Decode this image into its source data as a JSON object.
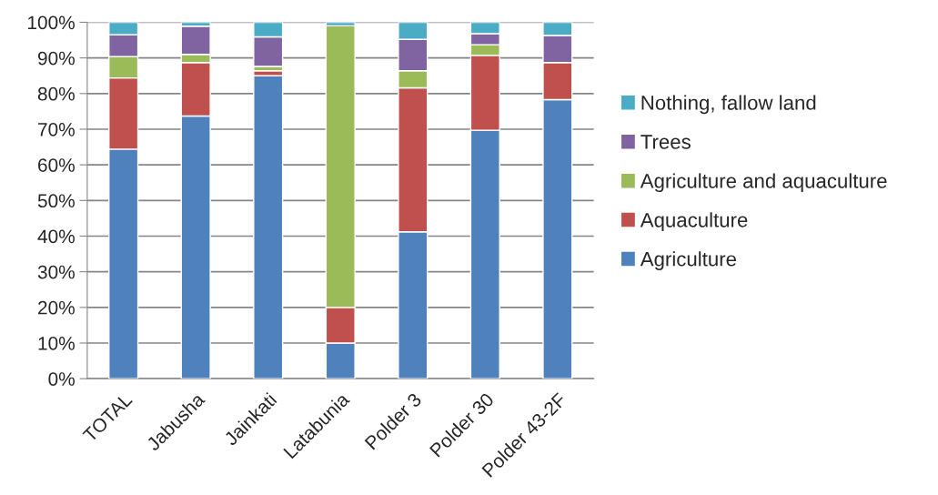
{
  "chart_data": {
    "type": "bar",
    "stacked": true,
    "categories": [
      "TOTAL",
      "Jabusha",
      "Jainkati",
      "Latabunia",
      "Polder 3",
      "Polder 30",
      "Polder 43-2F"
    ],
    "series": [
      {
        "name": "Agriculture",
        "color": "#4f81bd",
        "values": [
          64.4,
          73.7,
          85.0,
          10.0,
          41.2,
          69.7,
          78.3
        ]
      },
      {
        "name": "Aquaculture",
        "color": "#c0504d",
        "values": [
          20.0,
          15.0,
          1.4,
          10.0,
          40.4,
          21.0,
          10.4
        ]
      },
      {
        "name": "Agriculture and aquaculture",
        "color": "#9bbb59",
        "values": [
          6.0,
          2.3,
          1.2,
          79.0,
          4.8,
          3.0,
          null
        ]
      },
      {
        "name": "Trees",
        "color": "#8064a2",
        "values": [
          6.1,
          7.9,
          8.3,
          0,
          8.8,
          3.1,
          7.6
        ]
      },
      {
        "name": "Nothing, fallow land",
        "color": "#4bacc6",
        "values": [
          3.5,
          1.1,
          4.1,
          1.0,
          4.8,
          3.2,
          3.7
        ]
      }
    ],
    "ylim": [
      0,
      100
    ],
    "yticks": [
      {
        "value": 0,
        "label": "0%"
      },
      {
        "value": 10,
        "label": "10%"
      },
      {
        "value": 20,
        "label": "20%"
      },
      {
        "value": 30,
        "label": "30%"
      },
      {
        "value": 40,
        "label": "40%"
      },
      {
        "value": 50,
        "label": "50%"
      },
      {
        "value": 60,
        "label": "60%"
      },
      {
        "value": 70,
        "label": "70%"
      },
      {
        "value": 80,
        "label": "80%"
      },
      {
        "value": 90,
        "label": "90%"
      },
      {
        "value": 100,
        "label": "100%"
      }
    ],
    "grid": "y",
    "legend": "right"
  }
}
